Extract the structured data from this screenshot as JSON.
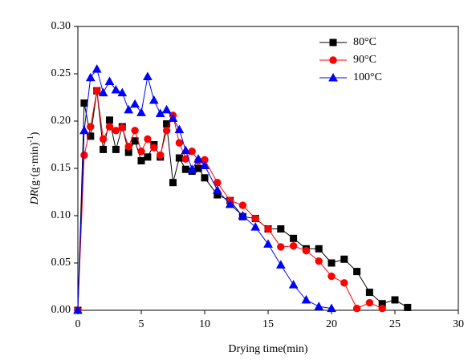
{
  "chart_data": {
    "type": "line",
    "xlabel": "Drying time(min)",
    "ylabel_parts": [
      "DR",
      "(g·(g·min)",
      "-1",
      ")"
    ],
    "xlim": [
      0,
      30
    ],
    "xticks": [
      0,
      5,
      10,
      15,
      20,
      25,
      30
    ],
    "ylim": [
      0,
      0.3
    ],
    "yticks": [
      {
        "value": 0,
        "label": "0.00"
      },
      {
        "value": 0.05,
        "label": "0.05"
      },
      {
        "value": 0.1,
        "label": "0.10"
      },
      {
        "value": 0.15,
        "label": "0.15"
      },
      {
        "value": 0.2,
        "label": "0.20"
      },
      {
        "value": 0.25,
        "label": "0.25"
      },
      {
        "value": 0.3,
        "label": "0.30"
      }
    ],
    "legend": "upper right",
    "series": [
      {
        "name": "80°C",
        "color": "#000000",
        "marker": "square",
        "x": [
          0,
          0.5,
          1,
          1.5,
          2,
          2.5,
          3,
          3.5,
          4,
          4.5,
          5,
          5.5,
          6,
          6.5,
          7,
          7.5,
          8,
          8.5,
          9,
          9.5,
          10,
          11,
          12,
          13,
          14,
          15,
          16,
          17,
          18,
          19,
          20,
          21,
          22,
          23,
          24,
          25,
          26
        ],
        "values": [
          0,
          0.219,
          0.184,
          0.232,
          0.17,
          0.201,
          0.17,
          0.194,
          0.167,
          0.179,
          0.158,
          0.162,
          0.175,
          0.162,
          0.197,
          0.135,
          0.161,
          0.149,
          0.147,
          0.15,
          0.14,
          0.122,
          0.116,
          0.099,
          0.097,
          0.086,
          0.086,
          0.076,
          0.065,
          0.065,
          0.05,
          0.054,
          0.041,
          0.019,
          0.007,
          0.011,
          0.003
        ]
      },
      {
        "name": "90°C",
        "color": "#ff0000",
        "marker": "circle",
        "x": [
          0,
          0.5,
          1,
          1.5,
          2,
          2.5,
          3,
          3.5,
          4,
          4.5,
          5,
          5.5,
          6,
          6.5,
          7,
          7.5,
          8,
          8.5,
          9,
          9.5,
          10,
          11,
          12,
          13,
          14,
          15,
          16,
          17,
          18,
          19,
          20,
          21,
          22,
          23,
          24
        ],
        "values": [
          0,
          0.164,
          0.194,
          0.232,
          0.181,
          0.194,
          0.19,
          0.193,
          0.173,
          0.19,
          0.168,
          0.181,
          0.172,
          0.164,
          0.19,
          0.206,
          0.177,
          0.16,
          0.168,
          0.158,
          0.159,
          0.135,
          0.116,
          0.111,
          0.097,
          0.086,
          0.067,
          0.068,
          0.063,
          0.052,
          0.036,
          0.029,
          0.002,
          0.008,
          0.002
        ]
      },
      {
        "name": "100°C",
        "color": "#0000ff",
        "marker": "triangle",
        "x": [
          0,
          0.5,
          1,
          1.5,
          2,
          2.5,
          3,
          3.5,
          4,
          4.5,
          5,
          5.5,
          6,
          6.5,
          7,
          7.5,
          8,
          8.5,
          9,
          9.5,
          10,
          11,
          12,
          13,
          14,
          15,
          16,
          17,
          18,
          19,
          20
        ],
        "values": [
          0,
          0.19,
          0.246,
          0.255,
          0.23,
          0.242,
          0.233,
          0.23,
          0.212,
          0.218,
          0.209,
          0.247,
          0.222,
          0.208,
          0.212,
          0.203,
          0.191,
          0.169,
          0.149,
          0.16,
          0.153,
          0.127,
          0.112,
          0.1,
          0.088,
          0.07,
          0.048,
          0.027,
          0.011,
          0.004,
          0.002
        ]
      }
    ]
  }
}
